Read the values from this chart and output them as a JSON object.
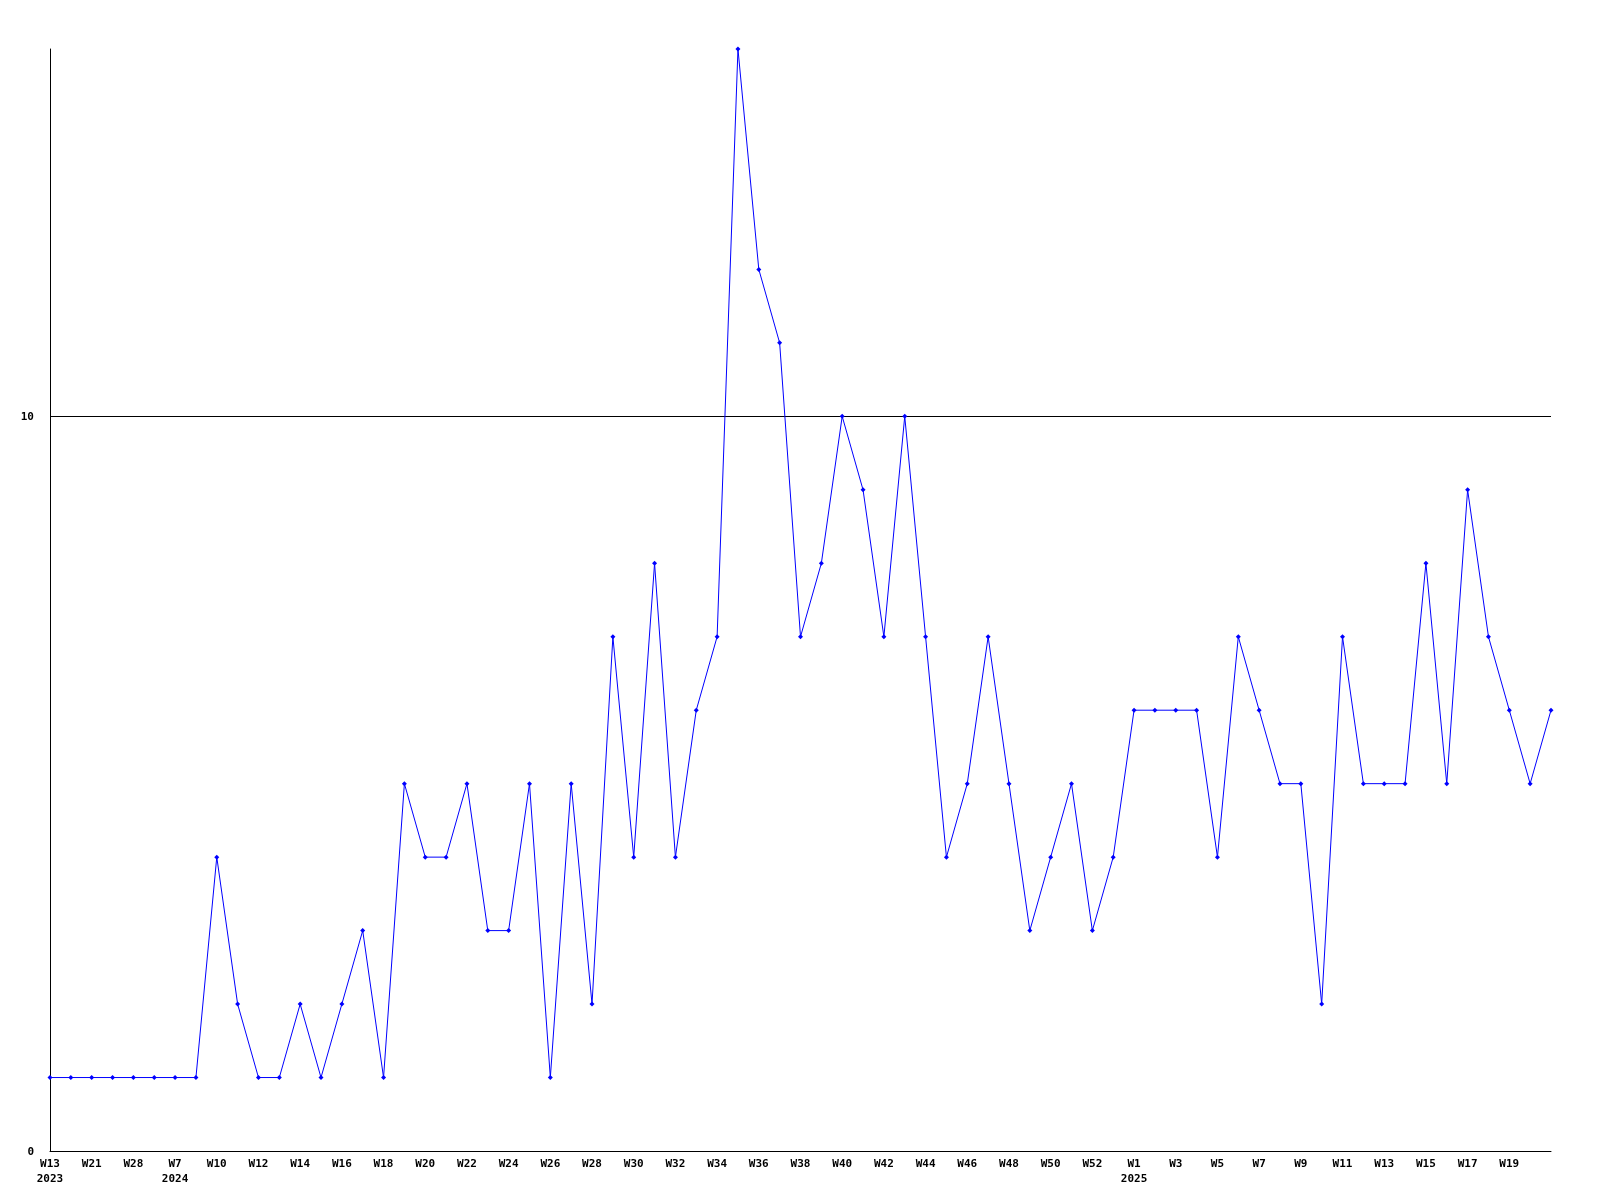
{
  "chart_data": {
    "type": "line",
    "categories": [
      "W13\n2023",
      null,
      "W21",
      null,
      "W28",
      null,
      "W7\n2024",
      null,
      "W10",
      null,
      "W12",
      null,
      "W14",
      null,
      "W16",
      null,
      "W18",
      null,
      "W20",
      null,
      "W22",
      null,
      "W24",
      null,
      "W26",
      null,
      "W28",
      null,
      "W30",
      null,
      "W32",
      null,
      "W34",
      null,
      "W36",
      null,
      "W38",
      null,
      "W40",
      null,
      "W42",
      null,
      "W44",
      null,
      "W46",
      null,
      "W48",
      null,
      "W50",
      null,
      "W52",
      null,
      "W1\n2025",
      null,
      "W3",
      null,
      "W5",
      null,
      "W7",
      null,
      "W9",
      null,
      "W11",
      null,
      "W13",
      null,
      "W15",
      null,
      "W17",
      null,
      "W19",
      null,
      null
    ],
    "series": [
      {
        "color": "#0000ff",
        "values": [
          1,
          1,
          1,
          1,
          1,
          1,
          1,
          1,
          4,
          2,
          1,
          1,
          2,
          1,
          2,
          3,
          1,
          5,
          4,
          4,
          5,
          3,
          3,
          5,
          1,
          5,
          2,
          7,
          4,
          8,
          4,
          6,
          7,
          15,
          12,
          11,
          7,
          8,
          10,
          9,
          7,
          10,
          7,
          4,
          5,
          7,
          5,
          3,
          4,
          5,
          3,
          4,
          6,
          6,
          6,
          6,
          4,
          7,
          6,
          5,
          5,
          2,
          7,
          5,
          5,
          5,
          8,
          5,
          9,
          7,
          6,
          5,
          6
        ]
      }
    ],
    "ylim": [
      0,
      15
    ],
    "yticks": [
      0,
      10
    ],
    "grid": "y",
    "marker": "diamond",
    "line_style": "solid"
  }
}
